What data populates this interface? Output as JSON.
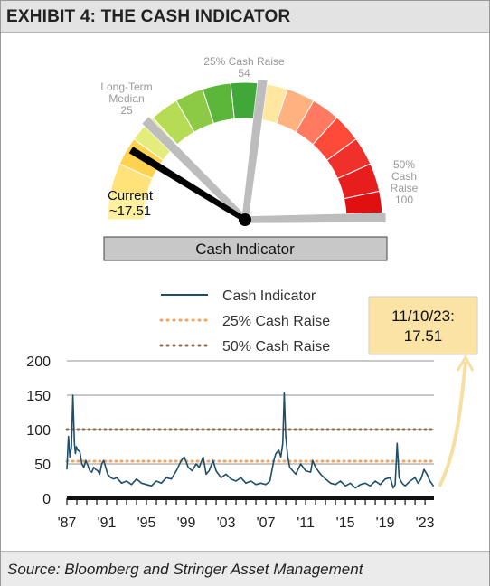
{
  "title": "EXHIBIT 4: THE CASH INDICATOR",
  "source": "Source: Bloomberg and Stringer Asset Management",
  "colors": {
    "line": "#1f4e6b",
    "raise25": "#f4a460",
    "raise50": "#8b6a4e",
    "callout_bg": "#fbe3a5",
    "arrow": "#f6dfa0"
  },
  "gauge": {
    "label": "Cash Indicator",
    "range": [
      0,
      100
    ],
    "needle_value": 17.51,
    "current_label": [
      "Current",
      "~17.51"
    ],
    "markers": [
      {
        "value": 25,
        "lines": [
          "Long-Term",
          "Median",
          "25"
        ]
      },
      {
        "value": 54,
        "lines": [
          "25% Cash Raise",
          "54"
        ]
      },
      {
        "value": 100,
        "lines": [
          "50%",
          "Cash",
          "Raise",
          "100"
        ]
      }
    ]
  },
  "callout": {
    "date": "11/10/23:",
    "value": "17.51"
  },
  "chart_data": {
    "type": "line",
    "title": "",
    "xlabel": "",
    "ylabel": "",
    "ylim": [
      0,
      200
    ],
    "yticks": [
      0,
      50,
      100,
      150,
      200
    ],
    "xlim": [
      1987,
      2023.9
    ],
    "xtick_labels": [
      "'87",
      "'91",
      "'95",
      "'99",
      "'03",
      "'07",
      "'11",
      "'15",
      "'19",
      "'23"
    ],
    "xtick_values": [
      1987,
      1991,
      1995,
      1999,
      2003,
      2007,
      2011,
      2015,
      2019,
      2023
    ],
    "legend": {
      "placement": "top-left",
      "entries": [
        "Cash Indicator",
        "25% Cash Raise",
        "50% Cash Raise"
      ]
    },
    "reference_lines": [
      {
        "name": "25% Cash Raise",
        "y": 54
      },
      {
        "name": "50% Cash Raise",
        "y": 100
      }
    ],
    "series": [
      {
        "name": "Cash Indicator",
        "x": [
          1987.0,
          1987.15,
          1987.3,
          1987.45,
          1987.6,
          1987.75,
          1987.85,
          1987.95,
          1988.1,
          1988.3,
          1988.5,
          1988.7,
          1988.9,
          1989.1,
          1989.3,
          1989.5,
          1989.7,
          1989.9,
          1990.1,
          1990.3,
          1990.5,
          1990.7,
          1990.9,
          1991.1,
          1991.4,
          1991.7,
          1992.0,
          1992.5,
          1993.0,
          1993.5,
          1994.0,
          1994.5,
          1995.0,
          1995.5,
          1996.0,
          1996.5,
          1997.0,
          1997.5,
          1998.0,
          1998.5,
          1998.8,
          1999.2,
          1999.6,
          2000.0,
          2000.3,
          2000.7,
          2001.0,
          2001.3,
          2001.7,
          2002.0,
          2002.5,
          2003.0,
          2003.5,
          2004.0,
          2004.5,
          2005.0,
          2005.5,
          2006.0,
          2006.5,
          2007.0,
          2007.4,
          2007.8,
          2008.0,
          2008.3,
          2008.5,
          2008.7,
          2008.85,
          2009.0,
          2009.2,
          2009.4,
          2009.7,
          2010.0,
          2010.5,
          2011.0,
          2011.5,
          2011.7,
          2012.0,
          2012.5,
          2013.0,
          2013.5,
          2014.0,
          2014.5,
          2015.0,
          2015.5,
          2016.0,
          2016.5,
          2017.0,
          2017.5,
          2018.0,
          2018.5,
          2019.0,
          2019.5,
          2019.8,
          2020.0,
          2020.2,
          2020.4,
          2020.7,
          2021.0,
          2021.5,
          2022.0,
          2022.3,
          2022.6,
          2022.9,
          2023.2,
          2023.5,
          2023.86
        ],
        "y": [
          42,
          90,
          60,
          75,
          150,
          80,
          65,
          75,
          70,
          68,
          50,
          45,
          55,
          48,
          40,
          38,
          45,
          42,
          40,
          35,
          50,
          55,
          45,
          35,
          30,
          28,
          30,
          22,
          25,
          20,
          28,
          22,
          20,
          18,
          25,
          22,
          30,
          28,
          40,
          55,
          60,
          45,
          40,
          50,
          45,
          60,
          35,
          40,
          55,
          40,
          30,
          35,
          28,
          25,
          30,
          22,
          25,
          20,
          22,
          20,
          25,
          55,
          65,
          70,
          60,
          80,
          153,
          90,
          60,
          45,
          40,
          35,
          50,
          40,
          38,
          55,
          45,
          35,
          28,
          22,
          20,
          25,
          18,
          22,
          15,
          20,
          22,
          18,
          25,
          20,
          28,
          30,
          15,
          20,
          80,
          30,
          22,
          18,
          25,
          30,
          22,
          28,
          42,
          35,
          25,
          17.51
        ]
      }
    ]
  }
}
